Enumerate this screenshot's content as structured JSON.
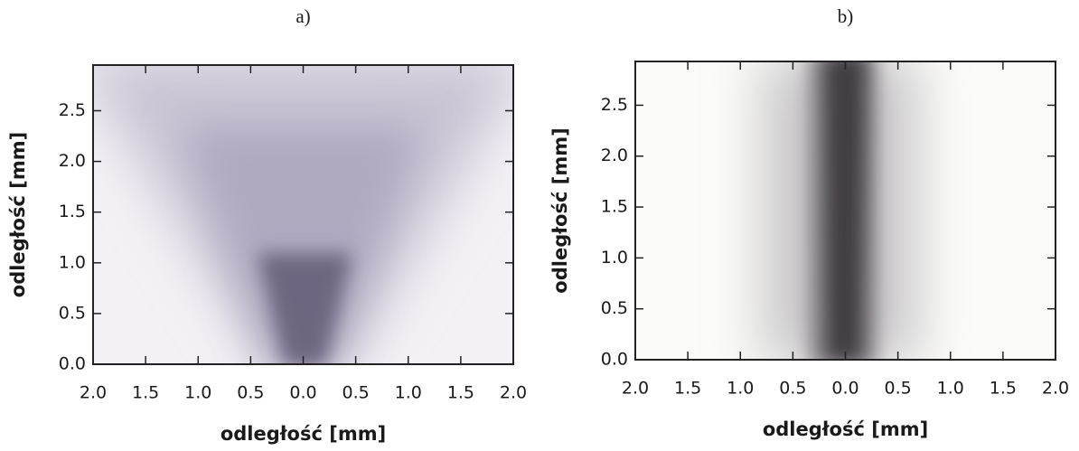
{
  "chart_data": [
    {
      "type": "image",
      "title": "a)",
      "xlabel": "odległość [mm]",
      "ylabel": "odległość [mm]",
      "xlim": [
        -2,
        2
      ],
      "ylim": [
        0,
        2.95
      ],
      "xticks": [
        {
          "value": -2,
          "label": "2.0"
        },
        {
          "value": -1.5,
          "label": "1.5"
        },
        {
          "value": -1,
          "label": "1.0"
        },
        {
          "value": -0.5,
          "label": "0.5"
        },
        {
          "value": 0,
          "label": "0.0"
        },
        {
          "value": 0.5,
          "label": "0.5"
        },
        {
          "value": 1,
          "label": "1.0"
        },
        {
          "value": 1.5,
          "label": "1.5"
        },
        {
          "value": 2,
          "label": "2.0"
        }
      ],
      "yticks": [
        {
          "value": 0,
          "label": "0.0"
        },
        {
          "value": 0.5,
          "label": "0.5"
        },
        {
          "value": 1,
          "label": "1.0"
        },
        {
          "value": 1.5,
          "label": "1.5"
        },
        {
          "value": 2,
          "label": "2.0"
        },
        {
          "value": 2.5,
          "label": "2.5"
        }
      ]
    },
    {
      "type": "image",
      "title": "b)",
      "xlabel": "odległość [mm]",
      "ylabel": "odległość [mm]",
      "xlim": [
        -2,
        2
      ],
      "ylim": [
        0,
        2.93
      ],
      "xticks": [
        {
          "value": -2,
          "label": "2.0"
        },
        {
          "value": -1.5,
          "label": "1.5"
        },
        {
          "value": -1,
          "label": "1.0"
        },
        {
          "value": -0.5,
          "label": "0.5"
        },
        {
          "value": 0,
          "label": "0.0"
        },
        {
          "value": 0.5,
          "label": "0.5"
        },
        {
          "value": 1,
          "label": "1.0"
        },
        {
          "value": 1.5,
          "label": "1.5"
        },
        {
          "value": 2,
          "label": "2.0"
        }
      ],
      "yticks": [
        {
          "value": 0,
          "label": "0.0"
        },
        {
          "value": 0.5,
          "label": "0.5"
        },
        {
          "value": 1,
          "label": "1.0"
        },
        {
          "value": 1.5,
          "label": "1.5"
        },
        {
          "value": 2,
          "label": "2.0"
        },
        {
          "value": 2.5,
          "label": "2.5"
        }
      ]
    }
  ]
}
